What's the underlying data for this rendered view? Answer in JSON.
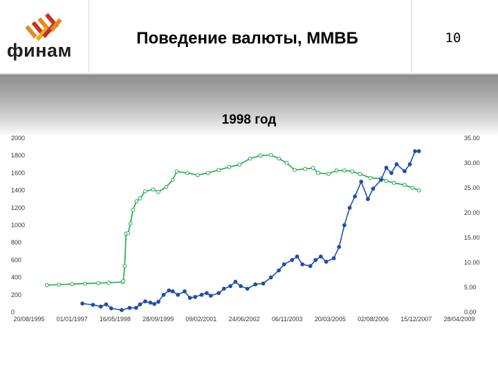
{
  "header": {
    "logo_text": "финам",
    "title": "Поведение валюты, ММВБ",
    "page_number": "10"
  },
  "colors": {
    "green_series": "#1aa84a",
    "blue_series": "#1f4fa8",
    "logo_red": "#c8321e",
    "logo_orange": "#e88a1a"
  },
  "chart_data": {
    "type": "line",
    "title": "1998 год",
    "x_type": "date",
    "x_ticks": [
      "20/08/1995",
      "01/01/1997",
      "16/05/1998",
      "28/09/1999",
      "09/02/2001",
      "24/06/2002",
      "06/11/2003",
      "20/03/2005",
      "02/08/2006",
      "15/12/2007",
      "28/04/2009"
    ],
    "y_left": {
      "min": 0,
      "max": 2000,
      "ticks": [
        "0",
        "200",
        "400",
        "600",
        "800",
        "1000",
        "1200",
        "1400",
        "1600",
        "1800",
        "2000"
      ]
    },
    "y_right": {
      "min": 0,
      "max": 35,
      "ticks": [
        "0.00",
        "5.00",
        "10.00",
        "15.00",
        "20.00",
        "25.00",
        "30.00",
        "35.00"
      ]
    },
    "grid": false,
    "legend": "none",
    "series": [
      {
        "axis": "right",
        "color": "#1aa84a",
        "marker": "hollow-circle",
        "points": [
          [
            "1996-03-15",
            5.45
          ],
          [
            "1996-08-01",
            5.55
          ],
          [
            "1997-01-01",
            5.65
          ],
          [
            "1997-06-01",
            5.75
          ],
          [
            "1997-11-01",
            5.85
          ],
          [
            "1998-03-01",
            5.95
          ],
          [
            "1998-08-10",
            6.05
          ],
          [
            "1998-08-20",
            6.3
          ],
          [
            "1998-09-05",
            9.3
          ],
          [
            "1998-09-20",
            15.8
          ],
          [
            "1998-10-15",
            15.9
          ],
          [
            "1998-11-10",
            17.8
          ],
          [
            "1998-12-10",
            20.6
          ],
          [
            "1999-01-20",
            22.3
          ],
          [
            "1999-03-01",
            22.9
          ],
          [
            "1999-05-01",
            24.3
          ],
          [
            "1999-08-01",
            24.7
          ],
          [
            "1999-10-01",
            24.2
          ],
          [
            "2000-01-01",
            25.2
          ],
          [
            "2000-03-15",
            26.6
          ],
          [
            "2000-05-01",
            28.3
          ],
          [
            "2000-09-01",
            28.0
          ],
          [
            "2001-01-01",
            27.6
          ],
          [
            "2001-05-01",
            28.0
          ],
          [
            "2001-09-01",
            28.6
          ],
          [
            "2002-01-01",
            29.2
          ],
          [
            "2002-05-01",
            29.7
          ],
          [
            "2002-09-01",
            30.9
          ],
          [
            "2003-01-01",
            31.5
          ],
          [
            "2003-05-01",
            31.6
          ],
          [
            "2003-08-01",
            30.9
          ],
          [
            "2003-11-01",
            30.0
          ],
          [
            "2004-02-01",
            28.6
          ],
          [
            "2004-06-01",
            28.8
          ],
          [
            "2004-09-01",
            29.0
          ],
          [
            "2004-11-01",
            28.0
          ],
          [
            "2005-03-01",
            27.8
          ],
          [
            "2005-06-01",
            28.5
          ],
          [
            "2005-09-01",
            28.5
          ],
          [
            "2005-12-01",
            28.3
          ],
          [
            "2006-03-01",
            27.8
          ],
          [
            "2006-07-01",
            27.0
          ],
          [
            "2006-11-01",
            26.9
          ],
          [
            "2007-01-01",
            26.4
          ],
          [
            "2007-04-01",
            26.0
          ],
          [
            "2007-08-01",
            25.6
          ],
          [
            "2007-11-01",
            25.0
          ],
          [
            "2008-01-15",
            24.5
          ]
        ]
      },
      {
        "axis": "left",
        "color": "#1f4fa8",
        "marker": "filled-circle",
        "points": [
          [
            "1997-05-01",
            100
          ],
          [
            "1997-09-01",
            85
          ],
          [
            "1997-12-01",
            65
          ],
          [
            "1998-02-01",
            90
          ],
          [
            "1998-04-01",
            45
          ],
          [
            "1998-08-01",
            25
          ],
          [
            "1998-11-01",
            50
          ],
          [
            "1999-01-15",
            50
          ],
          [
            "1999-03-01",
            90
          ],
          [
            "1999-05-01",
            125
          ],
          [
            "1999-07-01",
            110
          ],
          [
            "1999-08-15",
            95
          ],
          [
            "1999-10-01",
            120
          ],
          [
            "1999-12-01",
            200
          ],
          [
            "2000-02-01",
            250
          ],
          [
            "2000-03-15",
            240
          ],
          [
            "2000-05-15",
            200
          ],
          [
            "2000-08-01",
            240
          ],
          [
            "2000-10-01",
            165
          ],
          [
            "2000-12-01",
            175
          ],
          [
            "2001-02-15",
            200
          ],
          [
            "2001-04-15",
            220
          ],
          [
            "2001-06-01",
            190
          ],
          [
            "2001-09-01",
            220
          ],
          [
            "2001-11-01",
            270
          ],
          [
            "2002-01-15",
            300
          ],
          [
            "2002-03-15",
            350
          ],
          [
            "2002-05-15",
            300
          ],
          [
            "2002-08-01",
            270
          ],
          [
            "2002-11-01",
            320
          ],
          [
            "2003-02-01",
            330
          ],
          [
            "2003-05-01",
            400
          ],
          [
            "2003-08-01",
            480
          ],
          [
            "2003-10-01",
            550
          ],
          [
            "2004-01-01",
            600
          ],
          [
            "2004-03-01",
            640
          ],
          [
            "2004-05-01",
            550
          ],
          [
            "2004-08-01",
            530
          ],
          [
            "2004-10-01",
            600
          ],
          [
            "2004-12-01",
            640
          ],
          [
            "2005-02-01",
            580
          ],
          [
            "2005-05-01",
            620
          ],
          [
            "2005-07-01",
            750
          ],
          [
            "2005-09-01",
            1000
          ],
          [
            "2005-11-01",
            1200
          ],
          [
            "2006-01-01",
            1330
          ],
          [
            "2006-03-15",
            1500
          ],
          [
            "2006-06-01",
            1300
          ],
          [
            "2006-08-01",
            1420
          ],
          [
            "2006-11-01",
            1520
          ],
          [
            "2007-01-01",
            1660
          ],
          [
            "2007-03-01",
            1600
          ],
          [
            "2007-05-01",
            1700
          ],
          [
            "2007-08-01",
            1620
          ],
          [
            "2007-10-01",
            1700
          ],
          [
            "2007-12-01",
            1850
          ],
          [
            "2008-01-15",
            1850
          ]
        ]
      }
    ]
  }
}
